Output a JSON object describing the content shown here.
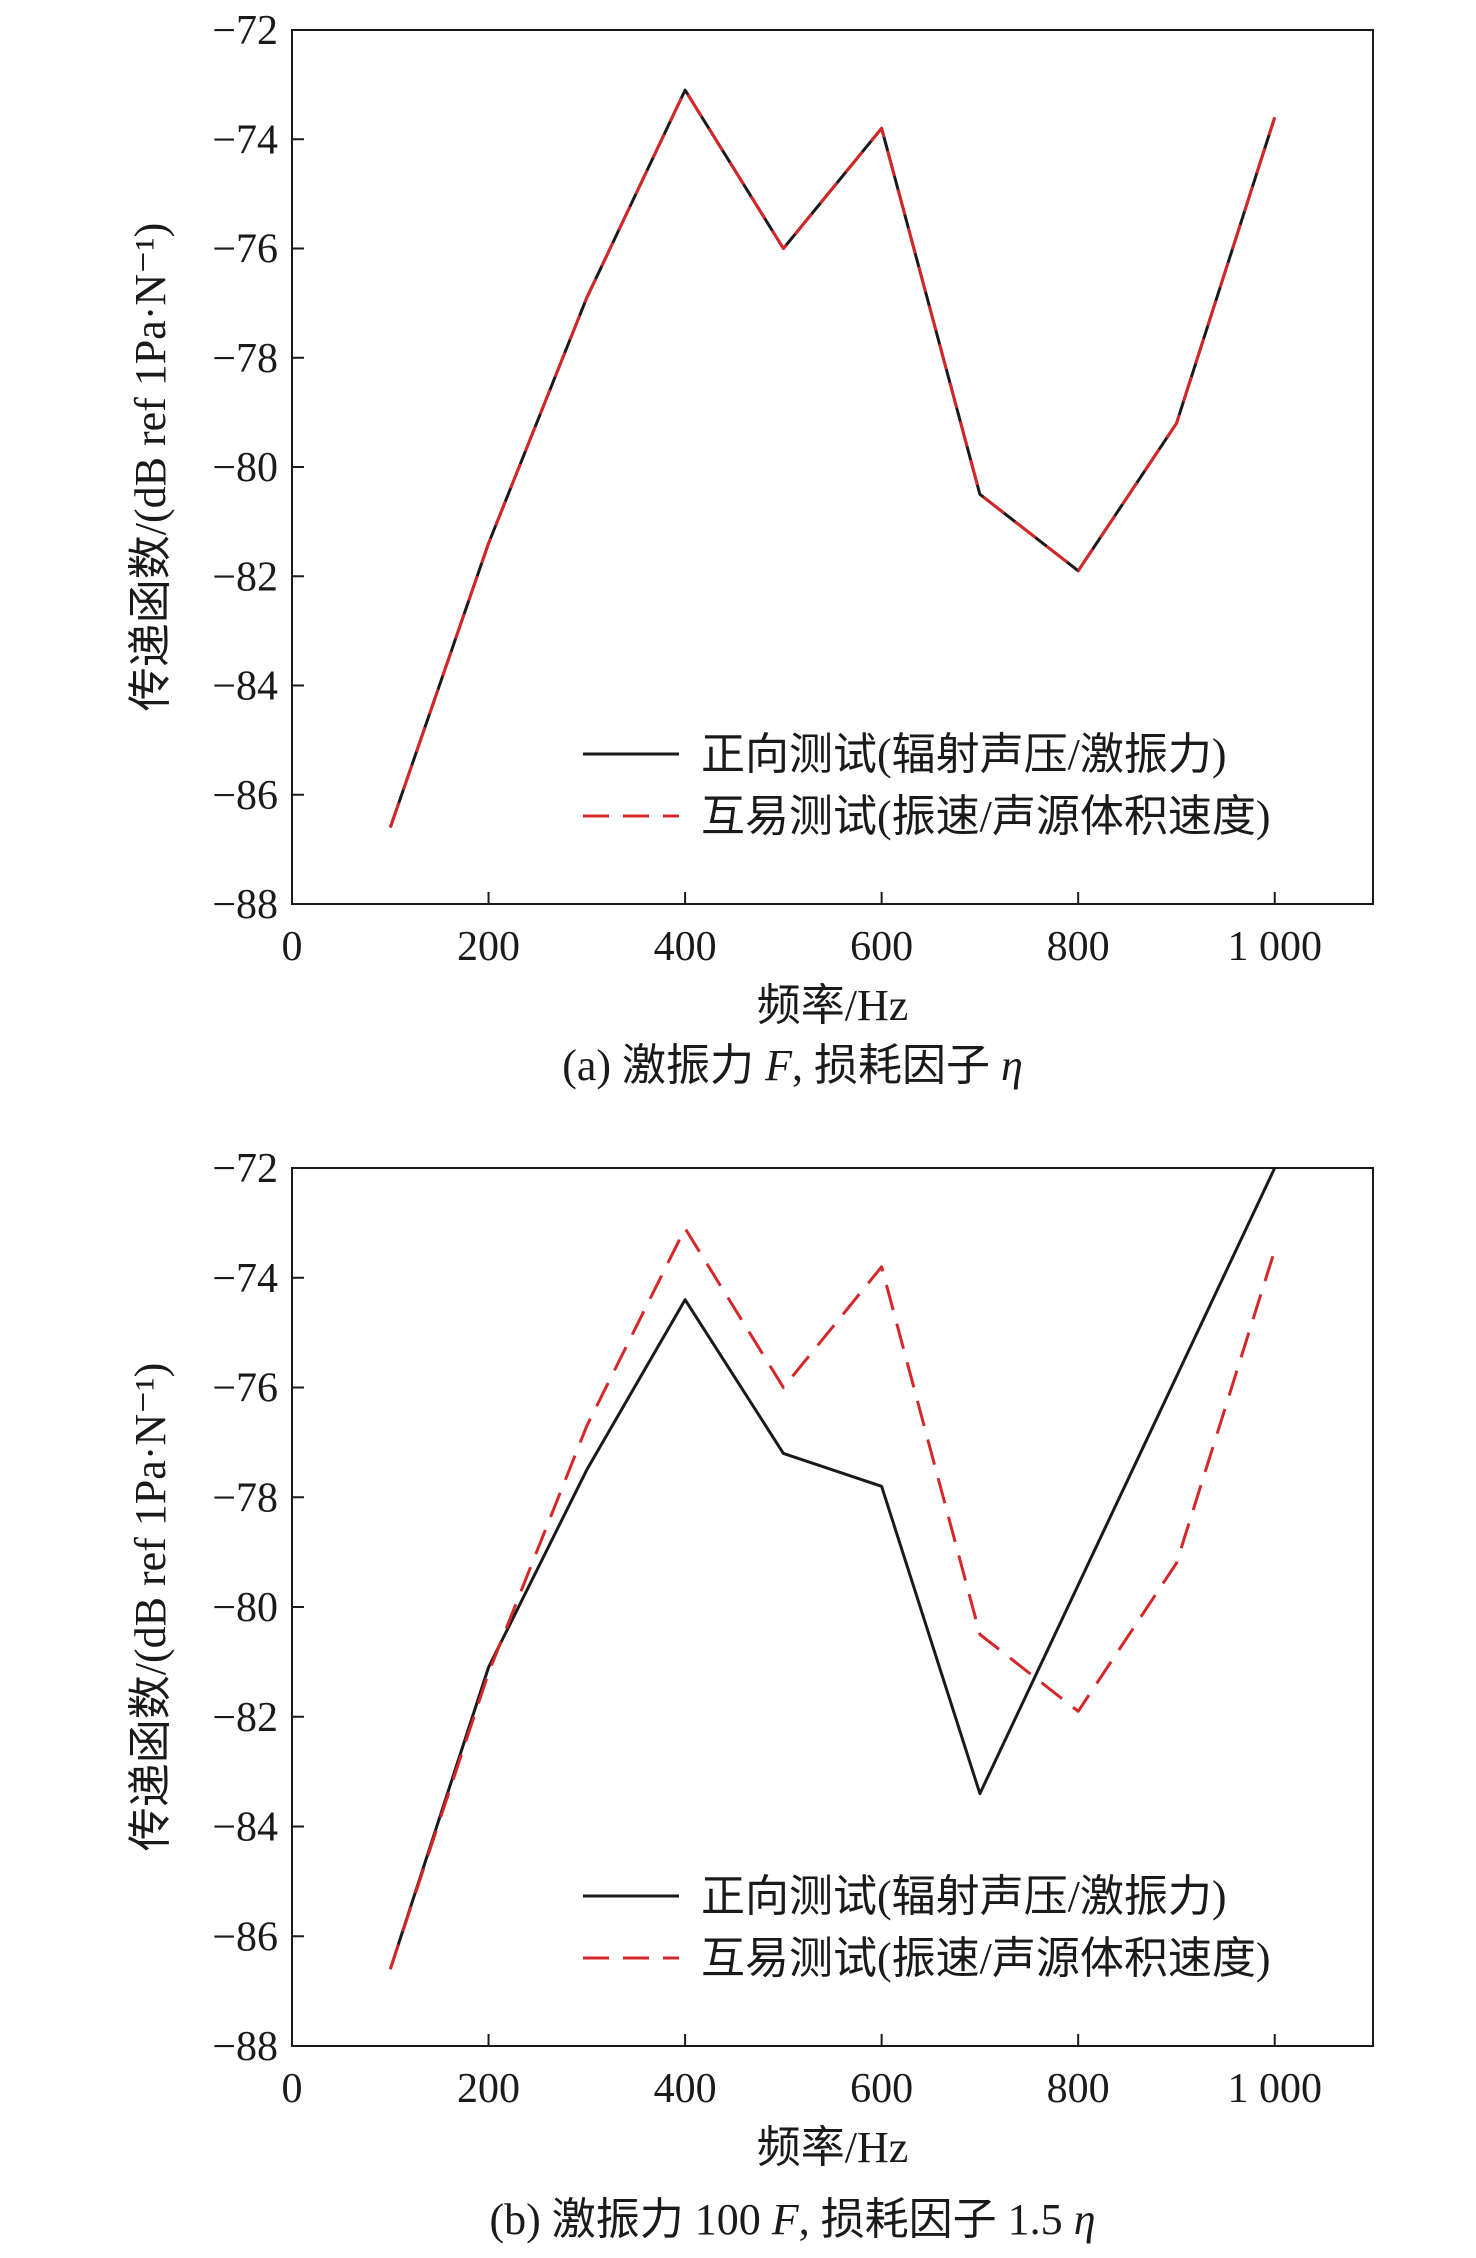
{
  "chart_data": [
    {
      "type": "line",
      "caption": "(a) 激振力 F, 损耗因子 η",
      "caption_parts": {
        "prefix": "(a) 激振力 ",
        "italic1": "F",
        "middle": ", 损耗因子 ",
        "italic2": "η"
      },
      "xlabel": "频率/Hz",
      "ylabel": "传递函数/(dB ref 1Pa·N⁻¹)",
      "xlim": [
        0,
        1100
      ],
      "ylim": [
        -88,
        -72
      ],
      "xticks": [
        0,
        200,
        400,
        600,
        800,
        1000
      ],
      "xtick_labels": [
        "0",
        "200",
        "400",
        "600",
        "800",
        "1 000"
      ],
      "yticks": [
        -88,
        -86,
        -84,
        -82,
        -80,
        -78,
        -76,
        -74,
        -72
      ],
      "ytick_labels": [
        "−88",
        "−86",
        "−84",
        "−82",
        "−80",
        "−78",
        "−76",
        "−74",
        "−72"
      ],
      "grid": false,
      "legend_position": "bottom-right",
      "x": [
        100,
        200,
        300,
        400,
        500,
        600,
        700,
        800,
        900,
        1000
      ],
      "series": [
        {
          "name": "正向测试(辐射声压/激振力)",
          "color": "#1a1a1a",
          "style": "solid",
          "values": [
            -86.6,
            -81.4,
            -76.9,
            -73.1,
            -76.0,
            -73.8,
            -80.5,
            -81.9,
            -79.2,
            -73.6
          ]
        },
        {
          "name": "互易测试(振速/声源体积速度)",
          "color": "#d62728",
          "style": "dashed",
          "values": [
            -86.6,
            -81.4,
            -76.9,
            -73.1,
            -76.0,
            -73.8,
            -80.5,
            -81.9,
            -79.2,
            -73.6
          ]
        }
      ]
    },
    {
      "type": "line",
      "caption": "(b) 激振力 100 F, 损耗因子 1.5 η",
      "caption_parts": {
        "prefix": "(b) 激振力 100 ",
        "italic1": "F",
        "middle": ", 损耗因子 1.5 ",
        "italic2": "η"
      },
      "xlabel": "频率/Hz",
      "ylabel": "传递函数/(dB ref 1Pa·N⁻¹)",
      "xlim": [
        0,
        1100
      ],
      "ylim": [
        -88,
        -72
      ],
      "xticks": [
        0,
        200,
        400,
        600,
        800,
        1000
      ],
      "xtick_labels": [
        "0",
        "200",
        "400",
        "600",
        "800",
        "1 000"
      ],
      "yticks": [
        -88,
        -86,
        -84,
        -82,
        -80,
        -78,
        -76,
        -74,
        -72
      ],
      "ytick_labels": [
        "−88",
        "−86",
        "−84",
        "−82",
        "−80",
        "−78",
        "−76",
        "−74",
        "−72"
      ],
      "grid": false,
      "legend_position": "bottom-right",
      "x": [
        100,
        200,
        300,
        400,
        500,
        600,
        700,
        800,
        900,
        1000
      ],
      "series": [
        {
          "name": "正向测试(辐射声压/激振力)",
          "color": "#1a1a1a",
          "style": "solid",
          "values": [
            -86.6,
            -81.1,
            -77.5,
            -74.4,
            -77.2,
            -77.8,
            -83.4,
            -79.6,
            -75.8,
            -72.0
          ]
        },
        {
          "name": "互易测试(振速/声源体积速度)",
          "color": "#d62728",
          "style": "dashed",
          "values": [
            -86.6,
            -81.2,
            -76.7,
            -73.1,
            -76.0,
            -73.8,
            -80.5,
            -81.9,
            -79.2,
            -73.5
          ]
        }
      ]
    }
  ]
}
